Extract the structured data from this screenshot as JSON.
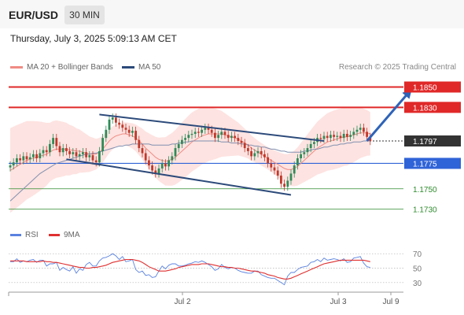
{
  "header": {
    "pair": "EUR/USD",
    "timeframe": "30 MIN"
  },
  "datetime": "Thursday, July 3, 2025 5:09:13 AM CET",
  "legend": {
    "ma20": {
      "label": "MA 20 + Bollinger Bands",
      "color": "#f08b84"
    },
    "ma50": {
      "label": "MA 50",
      "color": "#2c4a7a"
    }
  },
  "credit": "Research © 2025 Trading Central",
  "rsi_legend": {
    "rsi": {
      "label": "RSI",
      "color": "#5a82e0"
    },
    "ma9": {
      "label": "9MA",
      "color": "#e03030"
    }
  },
  "chart_data": [
    {
      "type": "candlestick",
      "title": "",
      "ylim": [
        1.1715,
        1.1862
      ],
      "x_ticks": [
        "Jul 2",
        "Jul 3",
        "Jul 9"
      ],
      "levels": [
        {
          "value": 1.185,
          "label": "1.1850",
          "color": "#e02828",
          "style": "resistance"
        },
        {
          "value": 1.183,
          "label": "1.1830",
          "color": "#e02828",
          "style": "resistance"
        },
        {
          "value": 1.1797,
          "label": "1.1797",
          "color": "#333333",
          "style": "current"
        },
        {
          "value": 1.1775,
          "label": "1.1775",
          "color": "#2f63d8",
          "style": "pivot"
        },
        {
          "value": 1.175,
          "label": "1.1750",
          "color": "#2e8b2e",
          "style": "support"
        },
        {
          "value": 1.173,
          "label": "1.1730",
          "color": "#2e8b2e",
          "style": "support"
        }
      ],
      "close": [
        1.1773,
        1.1776,
        1.178,
        1.1778,
        1.1782,
        1.1779,
        1.1781,
        1.1784,
        1.178,
        1.1785,
        1.1788,
        1.1786,
        1.1794,
        1.18,
        1.1792,
        1.1786,
        1.179,
        1.1787,
        1.1784,
        1.1786,
        1.1782,
        1.1784,
        1.1786,
        1.1781,
        1.1783,
        1.1778,
        1.1776,
        1.1787,
        1.18,
        1.1808,
        1.1818,
        1.182,
        1.1815,
        1.1813,
        1.181,
        1.1808,
        1.1805,
        1.1807,
        1.1798,
        1.179,
        1.1785,
        1.1778,
        1.1773,
        1.1768,
        1.1765,
        1.177,
        1.1775,
        1.1772,
        1.1778,
        1.1782,
        1.179,
        1.1794,
        1.1798,
        1.18,
        1.1803,
        1.1804,
        1.1806,
        1.1805,
        1.1808,
        1.181,
        1.1808,
        1.1805,
        1.18,
        1.1803,
        1.1806,
        1.1803,
        1.18,
        1.1802,
        1.18,
        1.1797,
        1.1795,
        1.179,
        1.1787,
        1.1782,
        1.1785,
        1.1787,
        1.1784,
        1.1781,
        1.1775,
        1.1771,
        1.1768,
        1.1763,
        1.1755,
        1.1752,
        1.1758,
        1.1765,
        1.1773,
        1.178,
        1.1784,
        1.1786,
        1.179,
        1.1794,
        1.1796,
        1.18,
        1.1799,
        1.1802,
        1.18,
        1.1803,
        1.1801,
        1.1802,
        1.18,
        1.1804,
        1.1801,
        1.1803,
        1.1806,
        1.1808,
        1.181,
        1.1806,
        1.1801,
        1.1797
      ],
      "bull_bear": [
        1,
        1,
        1,
        0,
        1,
        0,
        1,
        1,
        0,
        1,
        1,
        0,
        1,
        1,
        0,
        0,
        1,
        0,
        0,
        1,
        0,
        1,
        1,
        0,
        1,
        0,
        0,
        1,
        1,
        1,
        1,
        1,
        0,
        0,
        0,
        0,
        0,
        1,
        0,
        0,
        0,
        0,
        0,
        0,
        0,
        1,
        1,
        0,
        1,
        1,
        1,
        1,
        1,
        1,
        1,
        1,
        1,
        0,
        1,
        1,
        0,
        0,
        0,
        1,
        1,
        0,
        0,
        1,
        0,
        0,
        0,
        0,
        0,
        0,
        1,
        1,
        0,
        0,
        0,
        0,
        0,
        0,
        0,
        0,
        1,
        1,
        1,
        1,
        1,
        1,
        1,
        1,
        1,
        1,
        0,
        1,
        0,
        1,
        0,
        1,
        0,
        1,
        0,
        1,
        1,
        1,
        1,
        0,
        0,
        0
      ],
      "ma20_basis": [
        1.1768,
        1.177,
        1.1772,
        1.1774,
        1.1776,
        1.1778,
        1.1779,
        1.178,
        1.1781,
        1.1782,
        1.1783,
        1.1784,
        1.1786,
        1.1788,
        1.1789,
        1.1789,
        1.1789,
        1.1789,
        1.1788,
        1.1788,
        1.1787,
        1.1787,
        1.1786,
        1.1785,
        1.1784,
        1.1784,
        1.1784,
        1.1786,
        1.1789,
        1.1793,
        1.1797,
        1.18,
        1.1802,
        1.1803,
        1.1804,
        1.1804,
        1.1803,
        1.1802,
        1.18,
        1.1797,
        1.1794,
        1.179,
        1.1787,
        1.1784,
        1.1781,
        1.1779,
        1.1778,
        1.1777,
        1.1778,
        1.1779,
        1.1781,
        1.1784,
        1.1787,
        1.179,
        1.1793,
        1.1796,
        1.1798,
        1.18,
        1.1802,
        1.1803,
        1.1804,
        1.1804,
        1.1804,
        1.1804,
        1.1804,
        1.1803,
        1.1802,
        1.1801,
        1.18,
        1.1799,
        1.1797,
        1.1795,
        1.1793,
        1.179,
        1.1788,
        1.1786,
        1.1784,
        1.1782,
        1.178,
        1.1778,
        1.1776,
        1.1774,
        1.1772,
        1.177,
        1.1769,
        1.1769,
        1.177,
        1.1772,
        1.1775,
        1.1778,
        1.1781,
        1.1784,
        1.1787,
        1.179,
        1.1792,
        1.1794,
        1.1796,
        1.1797,
        1.1798,
        1.1799,
        1.18,
        1.1801,
        1.1801,
        1.1802,
        1.1803,
        1.1804,
        1.1805,
        1.1805,
        1.1805,
        1.1804
      ],
      "ma50": [
        1.1738,
        1.1741,
        1.1744,
        1.1747,
        1.175,
        1.1753,
        1.1756,
        1.1759,
        1.1762,
        1.1765,
        1.1767,
        1.1769,
        1.1771,
        1.1773,
        1.1775,
        1.1776,
        1.1777,
        1.1778,
        1.1779,
        1.178,
        1.1781,
        1.1782,
        1.1783,
        1.1784,
        1.1784,
        1.1785,
        1.1785,
        1.1786,
        1.1787,
        1.1788,
        1.1789,
        1.179,
        1.1791,
        1.1792,
        1.1792,
        1.1793,
        1.1793,
        1.1794,
        1.1794,
        1.1794,
        1.1794,
        1.1794,
        1.1794,
        1.1793,
        1.1793,
        1.1793,
        1.1793,
        1.1793,
        1.1793,
        1.1794,
        1.1794,
        1.1795,
        1.1795,
        1.1796,
        1.1796,
        1.1797,
        1.1797,
        1.1797,
        1.1797,
        1.1797,
        1.1797,
        1.1797,
        1.1797,
        1.1797,
        1.1796,
        1.1796,
        1.1796,
        1.1795,
        1.1795,
        1.1795,
        1.1794,
        1.1794,
        1.1793,
        1.1793,
        1.1792,
        1.1792,
        1.1791,
        1.1791,
        1.179,
        1.1789,
        1.1789,
        1.1788,
        1.1787,
        1.1787,
        1.1786,
        1.1786,
        1.1786,
        1.1786,
        1.1786,
        1.1787,
        1.1787,
        1.1788,
        1.1789,
        1.1789,
        1.179,
        1.1791,
        1.1791,
        1.1792,
        1.1793,
        1.1793,
        1.1794,
        1.1794,
        1.1795,
        1.1795,
        1.1796,
        1.1796,
        1.1796,
        1.1797,
        1.1797,
        1.1797
      ],
      "channel_upper": [
        [
          27,
          1.1823
        ],
        [
          95,
          1.1797
        ]
      ],
      "channel_lower": [
        [
          17,
          1.1779
        ],
        [
          85,
          1.1744
        ]
      ],
      "projection": [
        [
          108,
          1.1797
        ],
        [
          121,
          1.1846
        ]
      ]
    },
    {
      "type": "line",
      "title": "",
      "ylim": [
        20,
        80
      ],
      "y_ticks": [
        70,
        50,
        30
      ],
      "series": [
        {
          "name": "RSI",
          "values": [
            59,
            59,
            63,
            58,
            60,
            59,
            61,
            62,
            58,
            61,
            61,
            53,
            56,
            56,
            58,
            47,
            51,
            48,
            46,
            52,
            43,
            49,
            47,
            55,
            58,
            53,
            53,
            60,
            64,
            65,
            67,
            70,
            67,
            62,
            66,
            59,
            60,
            62,
            48,
            44,
            46,
            40,
            41,
            37,
            38,
            46,
            53,
            49,
            54,
            56,
            56,
            53,
            53,
            54,
            56,
            57,
            59,
            58,
            60,
            58,
            55,
            52,
            47,
            49,
            55,
            51,
            49,
            51,
            50,
            47,
            45,
            44,
            43,
            43,
            46,
            46,
            41,
            39,
            37,
            36,
            36,
            33,
            30,
            27,
            39,
            44,
            44,
            48,
            51,
            52,
            53,
            58,
            59,
            62,
            59,
            64,
            61,
            62,
            63,
            62,
            60,
            63,
            58,
            59,
            64,
            65,
            66,
            57,
            52,
            51
          ]
        },
        {
          "name": "9MA",
          "values": [
            60,
            60,
            60,
            60,
            60,
            59,
            59,
            59,
            59,
            59,
            60,
            59,
            59,
            58,
            58,
            57,
            56,
            55,
            54,
            53,
            52,
            51,
            51,
            50,
            50,
            51,
            51,
            52,
            53,
            54,
            56,
            58,
            59,
            60,
            61,
            62,
            62,
            62,
            61,
            60,
            58,
            55,
            52,
            50,
            48,
            46,
            46,
            46,
            47,
            48,
            49,
            51,
            52,
            53,
            54,
            55,
            55,
            55,
            56,
            56,
            56,
            55,
            54,
            53,
            52,
            52,
            51,
            51,
            50,
            50,
            49,
            48,
            47,
            46,
            46,
            45,
            44,
            43,
            41,
            40,
            39,
            37,
            36,
            35,
            35,
            36,
            38,
            40,
            42,
            44,
            46,
            48,
            50,
            52,
            54,
            56,
            57,
            58,
            59,
            60,
            61,
            61,
            61,
            61,
            61,
            61,
            61,
            61,
            60,
            59
          ]
        }
      ]
    }
  ]
}
